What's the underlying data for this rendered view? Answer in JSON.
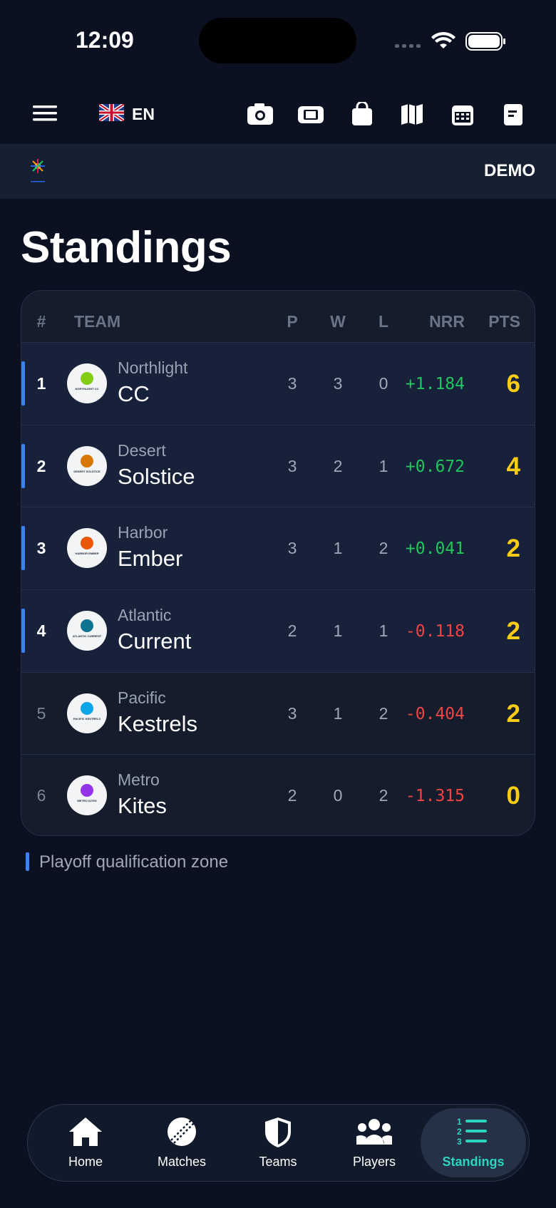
{
  "status_bar": {
    "time": "12:09"
  },
  "toolbar": {
    "language": "EN"
  },
  "header": {
    "badge": "DEMO"
  },
  "title": "Standings",
  "table": {
    "columns": [
      "#",
      "TEAM",
      "P",
      "W",
      "L",
      "NRR",
      "PTS"
    ],
    "rows": [
      {
        "rank": "1",
        "team_line1": "Northlight",
        "team_line2": "CC",
        "logo_text": "NORTHLIGHT CC",
        "p": "3",
        "w": "3",
        "l": "0",
        "nrr": "+1.184",
        "pts": "6",
        "qualified": true
      },
      {
        "rank": "2",
        "team_line1": "Desert",
        "team_line2": "Solstice",
        "logo_text": "DESERT SOLSTICE",
        "p": "3",
        "w": "2",
        "l": "1",
        "nrr": "+0.672",
        "pts": "4",
        "qualified": true
      },
      {
        "rank": "3",
        "team_line1": "Harbor",
        "team_line2": "Ember",
        "logo_text": "HARBOR EMBER",
        "p": "3",
        "w": "1",
        "l": "2",
        "nrr": "+0.041",
        "pts": "2",
        "qualified": true
      },
      {
        "rank": "4",
        "team_line1": "Atlantic",
        "team_line2": "Current",
        "logo_text": "ATLANTIC CURRENT",
        "p": "2",
        "w": "1",
        "l": "1",
        "nrr": "-0.118",
        "pts": "2",
        "qualified": true
      },
      {
        "rank": "5",
        "team_line1": "Pacific",
        "team_line2": "Kestrels",
        "logo_text": "PACIFIC KESTRELS",
        "p": "3",
        "w": "1",
        "l": "2",
        "nrr": "-0.404",
        "pts": "2",
        "qualified": false
      },
      {
        "rank": "6",
        "team_line1": "Metro",
        "team_line2": "Kites",
        "logo_text": "METRO KITES",
        "p": "2",
        "w": "0",
        "l": "2",
        "nrr": "-1.315",
        "pts": "0",
        "qualified": false
      }
    ]
  },
  "legend": "Playoff qualification zone",
  "nav": {
    "items": [
      {
        "label": "Home",
        "active": false
      },
      {
        "label": "Matches",
        "active": false
      },
      {
        "label": "Teams",
        "active": false
      },
      {
        "label": "Players",
        "active": false
      },
      {
        "label": "Standings",
        "active": true
      }
    ]
  }
}
